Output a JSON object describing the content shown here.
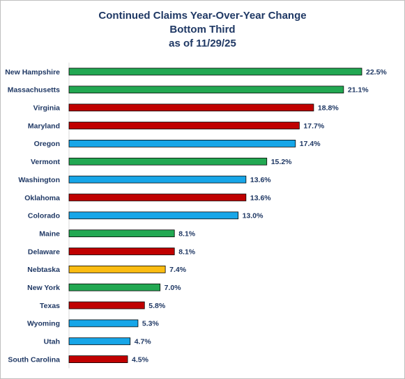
{
  "chart_data": {
    "type": "bar",
    "orientation": "horizontal",
    "title_lines": [
      "Continued Claims Year-Over-Year Change",
      "Bottom Third",
      "as of 11/29/25"
    ],
    "categories": [
      "New Hampshire",
      "Massachusetts",
      "Virginia",
      "Maryland",
      "Oregon",
      "Vermont",
      "Washington",
      "Oklahoma",
      "Colorado",
      "Maine",
      "Delaware",
      "Nebtaska",
      "New York",
      "Texas",
      "Wyoming",
      "Utah",
      "South Carolina"
    ],
    "values": [
      22.5,
      21.1,
      18.8,
      17.7,
      17.4,
      15.2,
      13.6,
      13.6,
      13.0,
      8.1,
      8.1,
      7.4,
      7.0,
      5.8,
      5.3,
      4.7,
      4.5
    ],
    "value_labels": [
      "22.5%",
      "21.1%",
      "18.8%",
      "17.7%",
      "17.4%",
      "15.2%",
      "13.6%",
      "13.6%",
      "13.0%",
      "8.1%",
      "8.1%",
      "7.4%",
      "7.0%",
      "5.8%",
      "5.3%",
      "4.7%",
      "4.5%"
    ],
    "bar_colors": [
      "#22a852",
      "#22a852",
      "#c00000",
      "#c00000",
      "#17a6e8",
      "#22a852",
      "#17a6e8",
      "#c00000",
      "#17a6e8",
      "#22a852",
      "#c00000",
      "#fbbc12",
      "#22a852",
      "#c00000",
      "#17a6e8",
      "#17a6e8",
      "#c00000"
    ],
    "xlim": [
      0,
      22.5
    ],
    "grid": false,
    "legend": "none"
  }
}
